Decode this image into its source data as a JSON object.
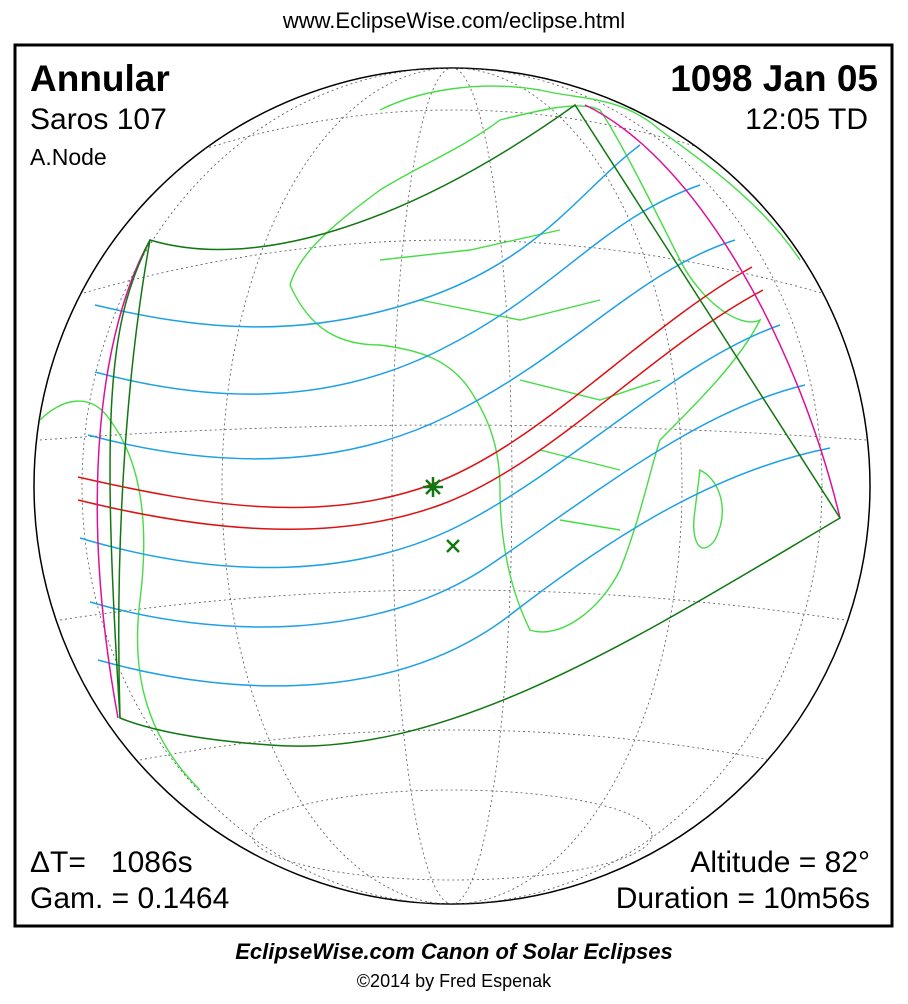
{
  "header": {
    "url": "www.EclipseWise.com/eclipse.html"
  },
  "panel": {
    "top_left": {
      "eclipse_type": "Annular",
      "saros": "Saros 107",
      "node": "A.Node"
    },
    "top_right": {
      "date": "1098 Jan 05",
      "time": "12:05 TD"
    },
    "bottom_left": {
      "delta_t": "ΔT=   1086s",
      "gamma": "Gam. = 0.1464"
    },
    "bottom_right": {
      "altitude": "Altitude = 82°",
      "duration": "Duration = 10m56s"
    }
  },
  "footer": {
    "title": "EclipseWise.com Canon of Solar Eclipses",
    "credit": "©2014 by Fred Espenak"
  }
}
